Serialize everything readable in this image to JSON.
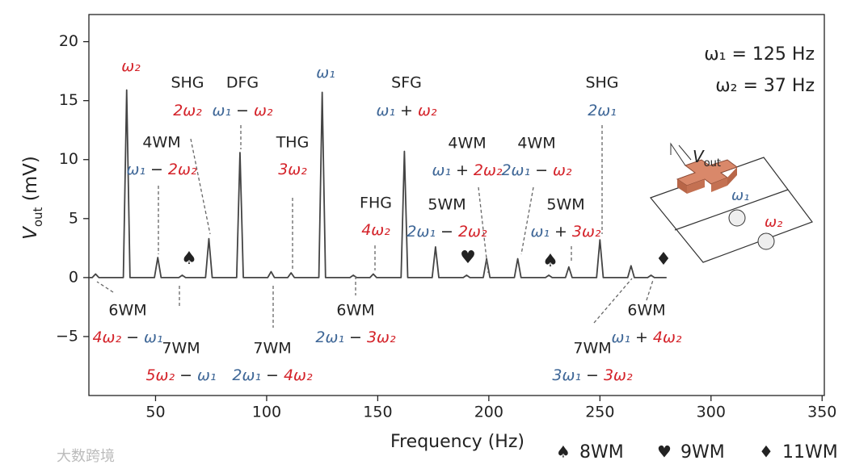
{
  "chart_data": {
    "type": "line",
    "xlabel": "Frequency (Hz)",
    "ylabel": [
      "V",
      "out",
      " (mV)"
    ],
    "xlim": [
      20,
      351
    ],
    "ylim": [
      -10,
      22.3
    ],
    "xticks": [
      50,
      100,
      150,
      200,
      250,
      300,
      350
    ],
    "yticks": [
      {
        "value": -5,
        "label": "−5"
      },
      0,
      5,
      10,
      15,
      20
    ],
    "x": [
      20,
      21.5,
      23,
      24.5,
      35.5,
      37,
      38.5,
      49.5,
      51,
      52.5,
      60.5,
      62,
      63.5,
      72.5,
      74,
      75.5,
      86.5,
      88,
      89.5,
      100.5,
      102,
      103.5,
      109.5,
      111,
      112.5,
      123.5,
      125,
      126.5,
      137.5,
      139,
      140.5,
      146.5,
      148,
      149.5,
      160.5,
      162,
      163.5,
      174.5,
      176,
      177.5,
      188.5,
      190,
      191.5,
      197.5,
      199,
      200.5,
      211.5,
      213,
      214.5,
      225.5,
      227,
      228.5,
      234.5,
      236,
      237.5,
      248.5,
      250,
      251.5,
      262.5,
      264,
      265.5,
      271.5,
      273,
      274.5,
      280
    ],
    "series": [
      {
        "color": "#444444",
        "values": [
          0,
          0,
          0.3,
          0,
          0,
          15.9,
          0,
          0,
          1.7,
          0,
          0,
          0.2,
          0,
          0,
          3.3,
          0,
          0,
          10.6,
          0,
          0,
          0.5,
          0,
          0,
          0.4,
          0,
          0,
          15.7,
          0,
          0,
          0.2,
          0,
          0,
          0.3,
          0,
          0,
          10.7,
          0,
          0,
          2.6,
          0,
          0,
          0.2,
          0,
          0,
          1.6,
          0,
          0,
          1.6,
          0,
          0,
          0.2,
          0,
          0,
          0.9,
          0,
          0,
          3.2,
          0,
          0,
          1.0,
          0,
          0,
          0.2,
          0,
          0
        ]
      }
    ],
    "annotations": [
      {
        "terms": [
          {
            "text": "ω₂",
            "color": "#d4232a"
          }
        ]
      },
      {
        "label": "SHG",
        "color": "#d4232a",
        "terms": [
          {
            "text": "2ω₂",
            "color": "#d4232a"
          }
        ]
      },
      {
        "label": "DFG",
        "color": "#4dba6c",
        "terms": [
          {
            "text": "ω₁",
            "color": "#3f6797"
          },
          {
            "text": "ω₂",
            "color": "#d4232a"
          }
        ],
        "op": "−"
      },
      {
        "terms": [
          {
            "text": "ω₁",
            "color": "#3f6797"
          }
        ]
      },
      {
        "label": "SFG",
        "color": "#4dba6c",
        "terms": [
          {
            "text": "ω₁",
            "color": "#3f6797"
          },
          {
            "text": "ω₂",
            "color": "#d4232a"
          }
        ],
        "op": "+"
      },
      {
        "label": "SHG",
        "color": "#3f6797",
        "terms": [
          {
            "text": "2ω₁",
            "color": "#3f6797"
          }
        ]
      },
      {
        "label": "4WM",
        "color": "#4dba6c",
        "terms": [
          {
            "text": "ω₁",
            "color": "#3f6797"
          },
          {
            "text": "2ω₂",
            "color": "#d4232a"
          }
        ],
        "op": "−"
      },
      {
        "label": "THG",
        "color": "#d4232a",
        "terms": [
          {
            "text": "3ω₂",
            "color": "#d4232a"
          }
        ]
      },
      {
        "label": "4WM",
        "color": "#4dba6c",
        "terms": [
          {
            "text": "ω₁",
            "color": "#3f6797"
          },
          {
            "text": "2ω₂",
            "color": "#d4232a"
          }
        ],
        "op": "+"
      },
      {
        "label": "4WM",
        "color": "#4dba6c",
        "terms": [
          {
            "text": "2ω₁",
            "color": "#3f6797"
          },
          {
            "text": "ω₂",
            "color": "#d4232a"
          }
        ],
        "op": "−"
      },
      {
        "label": "FHG",
        "color": "#d4232a",
        "terms": [
          {
            "text": "4ω₂",
            "color": "#d4232a"
          }
        ]
      },
      {
        "label": "5WM",
        "color": "#4dba6c",
        "terms": [
          {
            "text": "2ω₁",
            "color": "#3f6797"
          },
          {
            "text": "2ω₂",
            "color": "#d4232a"
          }
        ],
        "op": "−"
      },
      {
        "label": "5WM",
        "color": "#4dba6c",
        "terms": [
          {
            "text": "ω₁",
            "color": "#3f6797"
          },
          {
            "text": "3ω₂",
            "color": "#d4232a"
          }
        ],
        "op": "+"
      },
      {
        "label": "6WM",
        "color": "#4dba6c",
        "terms": [
          {
            "text": "4ω₂",
            "color": "#d4232a"
          },
          {
            "text": "ω₁",
            "color": "#3f6797"
          }
        ],
        "op": "−"
      },
      {
        "label": "7WM",
        "color": "#4dba6c",
        "terms": [
          {
            "text": "5ω₂",
            "color": "#d4232a"
          },
          {
            "text": "ω₁",
            "color": "#3f6797"
          }
        ],
        "op": "−"
      },
      {
        "label": "7WM",
        "color": "#4dba6c",
        "terms": [
          {
            "text": "2ω₁",
            "color": "#3f6797"
          },
          {
            "text": "4ω₂",
            "color": "#d4232a"
          }
        ],
        "op": "−"
      },
      {
        "label": "6WM",
        "color": "#4dba6c",
        "terms": [
          {
            "text": "2ω₁",
            "color": "#3f6797"
          },
          {
            "text": "3ω₂",
            "color": "#d4232a"
          }
        ],
        "op": "−"
      },
      {
        "label": "7WM",
        "color": "#4dba6c",
        "terms": [
          {
            "text": "3ω₁",
            "color": "#3f6797"
          },
          {
            "text": "3ω₂",
            "color": "#d4232a"
          }
        ],
        "op": "−"
      },
      {
        "label": "6WM",
        "color": "#4dba6c",
        "terms": [
          {
            "text": "ω₁",
            "color": "#3f6797"
          },
          {
            "text": "4ω₂",
            "color": "#d4232a"
          }
        ],
        "op": "+"
      }
    ],
    "markers": [
      {
        "symbol": "♠",
        "color": "#111111"
      },
      {
        "symbol": "♥",
        "color": "#e0141e"
      },
      {
        "symbol": "♠",
        "color": "#111111"
      },
      {
        "symbol": "♦",
        "color": "#e0141e"
      }
    ],
    "frequencies": [
      {
        "text": "ω₁ = 125 Hz",
        "color": "#3f6797"
      },
      {
        "text": "ω₂ = 37 Hz",
        "color": "#d4232a"
      }
    ],
    "inset": {
      "vout": [
        "V",
        "out"
      ],
      "w1": "ω₁",
      "w2": "ω₂"
    },
    "legend": [
      {
        "symbol": "♠",
        "label": "8WM",
        "color": "#111111"
      },
      {
        "symbol": "♥",
        "label": "9WM",
        "color": "#e0141e"
      },
      {
        "symbol": "♦",
        "label": "11WM",
        "color": "#e0141e"
      }
    ],
    "watermark": "大数跨境"
  }
}
